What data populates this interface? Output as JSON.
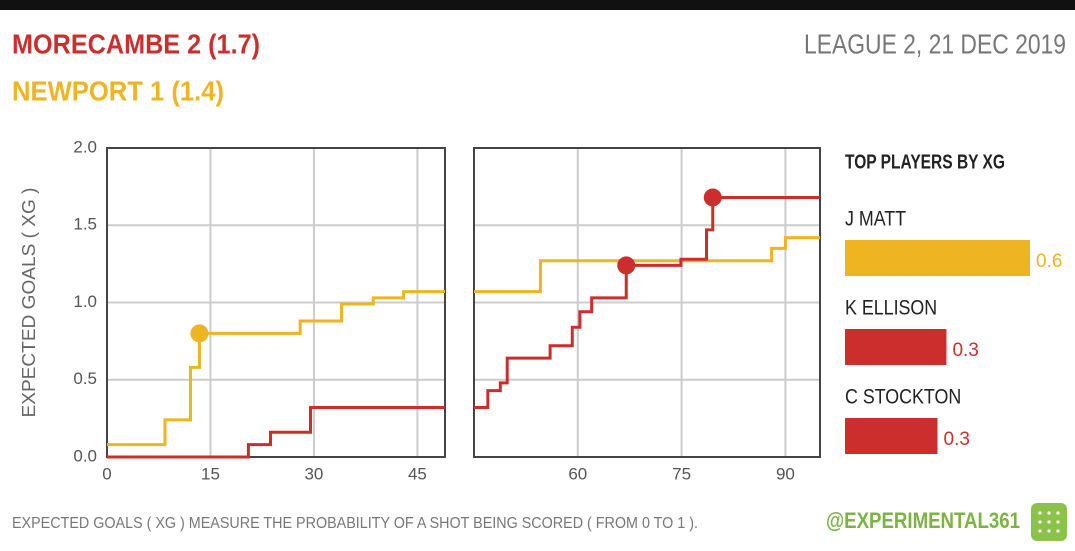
{
  "header": {
    "home": "MORECAMBE 2 (1.7)",
    "away": "NEWPORT 1 (1.4)",
    "match": "LEAGUE 2, 21 DEC 2019"
  },
  "footer": {
    "note": "EXPECTED GOALS ( XG ) MEASURE THE PROBABILITY OF A SHOT BEING SCORED ( FROM 0 TO 1 ).",
    "handle": "@EXPERIMENTAL361"
  },
  "chart_data": [
    {
      "type": "line",
      "step": "post",
      "ylabel": "EXPECTED GOALS ( XG )",
      "grid": true,
      "ytick_labels": true,
      "xlim": [
        0,
        49
      ],
      "ylim": [
        0,
        2
      ],
      "xticks": [
        0,
        15,
        30,
        45
      ],
      "yticks": [
        {
          "value": 0,
          "label": "0.0"
        },
        0.5,
        {
          "value": 1,
          "label": "1.0"
        },
        1.5,
        {
          "value": 2,
          "label": "2.0"
        }
      ],
      "series": [
        {
          "color": "#eeb422",
          "x": [
            0,
            8.4,
            12.1,
            13.4,
            28,
            34,
            38.6,
            43
          ],
          "values": [
            0.08,
            0.24,
            0.58,
            0.8,
            0.88,
            0.99,
            1.03,
            1.07
          ],
          "goals": {
            "x": [
              13.4
            ],
            "values": [
              0.8
            ]
          }
        },
        {
          "color": "#cc2e2e",
          "x": [
            0,
            20.5,
            23.7,
            29.5
          ],
          "values": [
            0,
            0.08,
            0.16,
            0.32
          ]
        }
      ]
    },
    {
      "type": "line",
      "step": "post",
      "grid": true,
      "ytick_labels": false,
      "xlim": [
        45,
        95
      ],
      "ylim": [
        0,
        2
      ],
      "xticks": [
        60,
        75,
        90
      ],
      "yticks": [
        0,
        0.5,
        1,
        1.5,
        2
      ],
      "series": [
        {
          "color": "#eeb422",
          "x": [
            45,
            54.6,
            88,
            90
          ],
          "values": [
            1.07,
            1.27,
            1.35,
            1.42
          ]
        },
        {
          "color": "#cc2e2e",
          "x": [
            45,
            47,
            48.8,
            49.8,
            56,
            59.2,
            60.3,
            62,
            67,
            74.9,
            78.6,
            79.5
          ],
          "values": [
            0.32,
            0.43,
            0.48,
            0.64,
            0.72,
            0.84,
            0.94,
            1.03,
            1.24,
            1.28,
            1.47,
            1.68
          ],
          "goals": {
            "x": [
              67,
              79.5
            ],
            "values": [
              1.24,
              1.68
            ]
          }
        }
      ]
    },
    {
      "type": "bar",
      "orientation": "horizontal",
      "title": "TOP PLAYERS BY XG",
      "categories": [
        "J MATT",
        "K ELLISON",
        "C STOCKTON"
      ],
      "values": [
        0.62,
        0.34,
        0.31
      ],
      "value_labels": [
        "0.6",
        "0.3",
        "0.3"
      ],
      "colors": [
        "#eeb422",
        "#cc2e2e",
        "#cc2e2e"
      ],
      "xlim": [
        0,
        0.62
      ]
    }
  ]
}
